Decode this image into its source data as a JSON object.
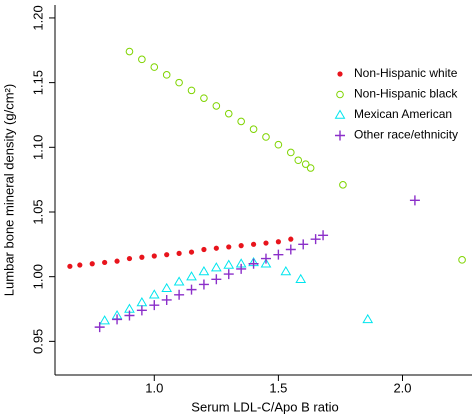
{
  "chart_data": {
    "type": "scatter",
    "xlabel": "Serum LDL-C/Apo B ratio",
    "ylabel": "Lumbar bone mineral density (g/cm²)",
    "xlim": [
      0.6,
      2.28
    ],
    "ylim": [
      0.924,
      1.21
    ],
    "xticks": [
      {
        "value": 1,
        "label": "1.0"
      },
      1.5,
      {
        "value": 2,
        "label": "2.0"
      }
    ],
    "yticks": [
      0.95,
      {
        "value": 1,
        "label": "1.00"
      },
      1.05,
      {
        "value": 1.1,
        "label": "1.10"
      },
      1.15,
      {
        "value": 1.2,
        "label": "1.20"
      }
    ],
    "legend": "top-right",
    "series": [
      {
        "name": "Non-Hispanic white",
        "color": "#e8141c",
        "marker": "dot",
        "x": [
          0.66,
          0.7,
          0.75,
          0.8,
          0.85,
          0.9,
          0.95,
          1.0,
          1.05,
          1.1,
          1.15,
          1.2,
          1.25,
          1.3,
          1.35,
          1.4,
          1.45,
          1.5,
          1.55
        ],
        "values": [
          1.008,
          1.009,
          1.01,
          1.011,
          1.012,
          1.014,
          1.015,
          1.016,
          1.017,
          1.018,
          1.019,
          1.021,
          1.022,
          1.023,
          1.024,
          1.025,
          1.026,
          1.027,
          1.029
        ]
      },
      {
        "name": "Non-Hispanic black",
        "color": "#7fd400",
        "marker": "circle",
        "x": [
          0.9,
          0.95,
          1.0,
          1.05,
          1.1,
          1.15,
          1.2,
          1.25,
          1.3,
          1.35,
          1.4,
          1.45,
          1.5,
          1.55,
          1.58,
          1.61,
          1.63,
          1.76,
          2.24
        ],
        "values": [
          1.174,
          1.168,
          1.162,
          1.156,
          1.15,
          1.144,
          1.138,
          1.132,
          1.126,
          1.12,
          1.114,
          1.108,
          1.102,
          1.096,
          1.09,
          1.087,
          1.084,
          1.071,
          1.013
        ]
      },
      {
        "name": "Mexican American",
        "color": "#00e5ee",
        "marker": "triangle",
        "x": [
          0.8,
          0.85,
          0.9,
          0.95,
          1.0,
          1.05,
          1.1,
          1.15,
          1.2,
          1.25,
          1.3,
          1.35,
          1.4,
          1.45,
          1.53,
          1.59,
          1.86
        ],
        "values": [
          0.966,
          0.97,
          0.975,
          0.98,
          0.986,
          0.991,
          0.996,
          1.0,
          1.004,
          1.007,
          1.009,
          1.01,
          1.011,
          1.01,
          1.004,
          0.998,
          0.967
        ]
      },
      {
        "name": "Other race/ethnicity",
        "color": "#8b2fc9",
        "marker": "plus",
        "x": [
          0.78,
          0.85,
          0.9,
          0.95,
          1.0,
          1.05,
          1.1,
          1.15,
          1.2,
          1.25,
          1.3,
          1.35,
          1.4,
          1.45,
          1.5,
          1.55,
          1.6,
          1.65,
          1.68,
          2.05
        ],
        "values": [
          0.961,
          0.967,
          0.97,
          0.974,
          0.978,
          0.982,
          0.986,
          0.99,
          0.994,
          0.998,
          1.002,
          1.006,
          1.01,
          1.014,
          1.017,
          1.021,
          1.025,
          1.029,
          1.032,
          1.059
        ]
      }
    ]
  }
}
